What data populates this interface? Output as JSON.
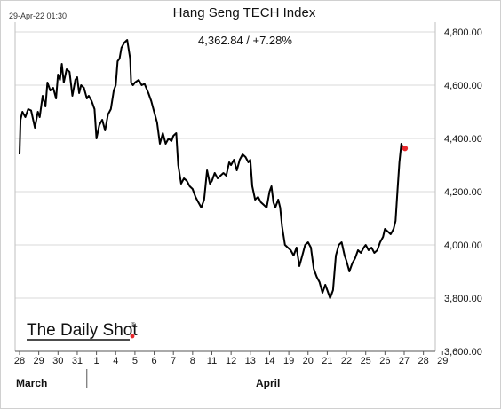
{
  "chart_data": {
    "type": "line",
    "title": "Hang Seng TECH Index",
    "timestamp": "29-Apr-22 01:30",
    "last_value_label": "4,362.84  /  +7.28%",
    "watermark": "The Daily Shot",
    "watermark_mark": "®",
    "xlabel": "",
    "ylabel": "",
    "ylim": [
      3600,
      4850
    ],
    "y_ticks": [
      3600,
      3800,
      4000,
      4200,
      4400,
      4600,
      4800
    ],
    "y_tick_labels": [
      "3,600.00",
      "3,800.00",
      "4,000.00",
      "4,200.00",
      "4,400.00",
      "4,600.00",
      "4,800.00"
    ],
    "x_ticks": [
      "28",
      "29",
      "30",
      "31",
      "1",
      "4",
      "5",
      "6",
      "7",
      "8",
      "11",
      "12",
      "13",
      "14",
      "19",
      "20",
      "21",
      "22",
      "25",
      "26",
      "27",
      "28",
      "29"
    ],
    "x_day_labels": [
      "28",
      "29",
      "30",
      "31",
      "1",
      "4",
      "5",
      "6",
      "7",
      "8",
      "11",
      "12",
      "13",
      "14",
      "19",
      "20",
      "21",
      "22",
      "25",
      "26",
      "27",
      "28",
      "29"
    ],
    "months": [
      "March",
      "April"
    ],
    "grid": true,
    "legend": "none",
    "line_color": "#000000",
    "last_point_color": "#e8282c",
    "series": [
      {
        "values": [
          [
            0.0,
            4340
          ],
          [
            0.05,
            4470
          ],
          [
            0.15,
            4500
          ],
          [
            0.3,
            4480
          ],
          [
            0.45,
            4510
          ],
          [
            0.6,
            4505
          ],
          [
            0.8,
            4440
          ],
          [
            0.95,
            4500
          ],
          [
            1.05,
            4480
          ],
          [
            1.2,
            4560
          ],
          [
            1.35,
            4520
          ],
          [
            1.45,
            4610
          ],
          [
            1.6,
            4580
          ],
          [
            1.75,
            4590
          ],
          [
            1.9,
            4550
          ],
          [
            2.0,
            4640
          ],
          [
            2.1,
            4620
          ],
          [
            2.2,
            4680
          ],
          [
            2.3,
            4610
          ],
          [
            2.45,
            4660
          ],
          [
            2.6,
            4650
          ],
          [
            2.75,
            4560
          ],
          [
            2.9,
            4620
          ],
          [
            3.0,
            4630
          ],
          [
            3.1,
            4570
          ],
          [
            3.2,
            4600
          ],
          [
            3.35,
            4590
          ],
          [
            3.5,
            4550
          ],
          [
            3.6,
            4560
          ],
          [
            3.75,
            4540
          ],
          [
            3.9,
            4510
          ],
          [
            4.0,
            4400
          ],
          [
            4.15,
            4450
          ],
          [
            4.3,
            4470
          ],
          [
            4.45,
            4430
          ],
          [
            4.6,
            4490
          ],
          [
            4.75,
            4510
          ],
          [
            4.9,
            4580
          ],
          [
            5.0,
            4600
          ],
          [
            5.1,
            4690
          ],
          [
            5.2,
            4700
          ],
          [
            5.3,
            4740
          ],
          [
            5.45,
            4760
          ],
          [
            5.6,
            4770
          ],
          [
            5.75,
            4700
          ],
          [
            5.8,
            4610
          ],
          [
            5.9,
            4600
          ],
          [
            6.0,
            4610
          ],
          [
            6.2,
            4620
          ],
          [
            6.35,
            4600
          ],
          [
            6.5,
            4605
          ],
          [
            6.7,
            4570
          ],
          [
            6.85,
            4540
          ],
          [
            7.0,
            4500
          ],
          [
            7.15,
            4460
          ],
          [
            7.3,
            4380
          ],
          [
            7.45,
            4420
          ],
          [
            7.6,
            4380
          ],
          [
            7.75,
            4400
          ],
          [
            7.9,
            4390
          ],
          [
            8.0,
            4410
          ],
          [
            8.15,
            4420
          ],
          [
            8.25,
            4300
          ],
          [
            8.4,
            4230
          ],
          [
            8.55,
            4250
          ],
          [
            8.7,
            4240
          ],
          [
            8.85,
            4220
          ],
          [
            9.0,
            4210
          ],
          [
            9.15,
            4180
          ],
          [
            9.3,
            4160
          ],
          [
            9.45,
            4140
          ],
          [
            9.6,
            4170
          ],
          [
            9.75,
            4280
          ],
          [
            9.9,
            4230
          ],
          [
            10.0,
            4240
          ],
          [
            10.15,
            4270
          ],
          [
            10.3,
            4250
          ],
          [
            10.45,
            4260
          ],
          [
            10.6,
            4270
          ],
          [
            10.75,
            4260
          ],
          [
            10.9,
            4310
          ],
          [
            11.0,
            4300
          ],
          [
            11.15,
            4320
          ],
          [
            11.3,
            4280
          ],
          [
            11.45,
            4320
          ],
          [
            11.6,
            4340
          ],
          [
            11.75,
            4330
          ],
          [
            11.9,
            4310
          ],
          [
            12.0,
            4320
          ],
          [
            12.1,
            4220
          ],
          [
            12.25,
            4170
          ],
          [
            12.4,
            4180
          ],
          [
            12.55,
            4160
          ],
          [
            12.7,
            4150
          ],
          [
            12.85,
            4140
          ],
          [
            13.0,
            4200
          ],
          [
            13.1,
            4220
          ],
          [
            13.2,
            4160
          ],
          [
            13.3,
            4140
          ],
          [
            13.45,
            4170
          ],
          [
            13.55,
            4140
          ],
          [
            13.65,
            4070
          ],
          [
            13.8,
            4000
          ],
          [
            13.95,
            3990
          ],
          [
            14.1,
            3980
          ],
          [
            14.25,
            3960
          ],
          [
            14.4,
            3990
          ],
          [
            14.55,
            3920
          ],
          [
            14.7,
            3960
          ],
          [
            14.85,
            4000
          ],
          [
            15.0,
            4010
          ],
          [
            15.15,
            3990
          ],
          [
            15.3,
            3910
          ],
          [
            15.45,
            3880
          ],
          [
            15.6,
            3860
          ],
          [
            15.75,
            3820
          ],
          [
            15.9,
            3850
          ],
          [
            16.0,
            3830
          ],
          [
            16.15,
            3800
          ],
          [
            16.3,
            3830
          ],
          [
            16.45,
            3960
          ],
          [
            16.6,
            4000
          ],
          [
            16.75,
            4010
          ],
          [
            16.9,
            3960
          ],
          [
            17.0,
            3940
          ],
          [
            17.15,
            3900
          ],
          [
            17.3,
            3930
          ],
          [
            17.45,
            3950
          ],
          [
            17.6,
            3980
          ],
          [
            17.75,
            3970
          ],
          [
            17.9,
            3990
          ],
          [
            18.0,
            4000
          ],
          [
            18.15,
            3980
          ],
          [
            18.3,
            3990
          ],
          [
            18.45,
            3970
          ],
          [
            18.6,
            3980
          ],
          [
            18.75,
            4010
          ],
          [
            18.9,
            4030
          ],
          [
            19.0,
            4060
          ],
          [
            19.15,
            4050
          ],
          [
            19.3,
            4040
          ],
          [
            19.45,
            4060
          ],
          [
            19.55,
            4090
          ],
          [
            19.65,
            4200
          ],
          [
            19.75,
            4310
          ],
          [
            19.85,
            4380
          ],
          [
            19.95,
            4362.84
          ]
        ]
      }
    ]
  }
}
